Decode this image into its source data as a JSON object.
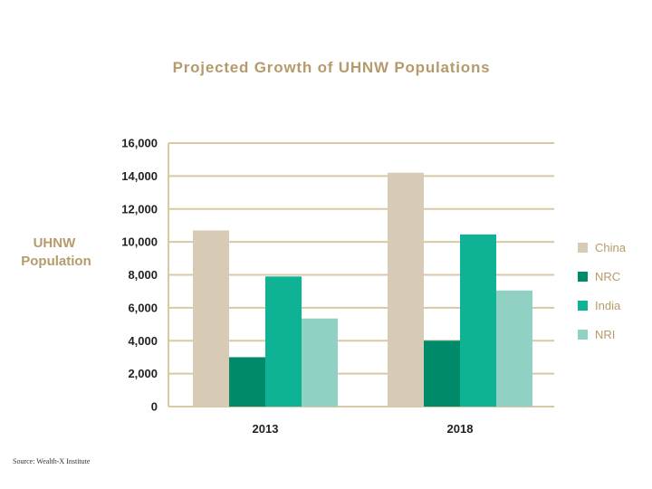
{
  "chart_data": {
    "type": "bar",
    "title": "Projected Growth of UHNW Populations",
    "xlabel": "",
    "ylabel": "UHNW Population",
    "ylabel_lines": [
      "UHNW",
      "Population"
    ],
    "categories": [
      "2013",
      "2018"
    ],
    "series": [
      {
        "name": "China",
        "values": [
          10700,
          14200
        ],
        "color": "#d8cbb6"
      },
      {
        "name": "NRC",
        "values": [
          3000,
          4000
        ],
        "color": "#008a6a"
      },
      {
        "name": "India",
        "values": [
          7900,
          10450
        ],
        "color": "#0db394"
      },
      {
        "name": "NRI",
        "values": [
          5350,
          7050
        ],
        "color": "#91d1c4"
      }
    ],
    "ylim": [
      0,
      16000
    ],
    "yticks": [
      0,
      2000,
      4000,
      6000,
      8000,
      10000,
      12000,
      14000,
      16000
    ],
    "ytick_labels": [
      "0",
      "2,000",
      "4,000",
      "6,000",
      "8,000",
      "10,000",
      "12,000",
      "14,000",
      "16,000"
    ],
    "grid": true,
    "legend_position": "right"
  },
  "source": "Source: Wealth-X Institute"
}
